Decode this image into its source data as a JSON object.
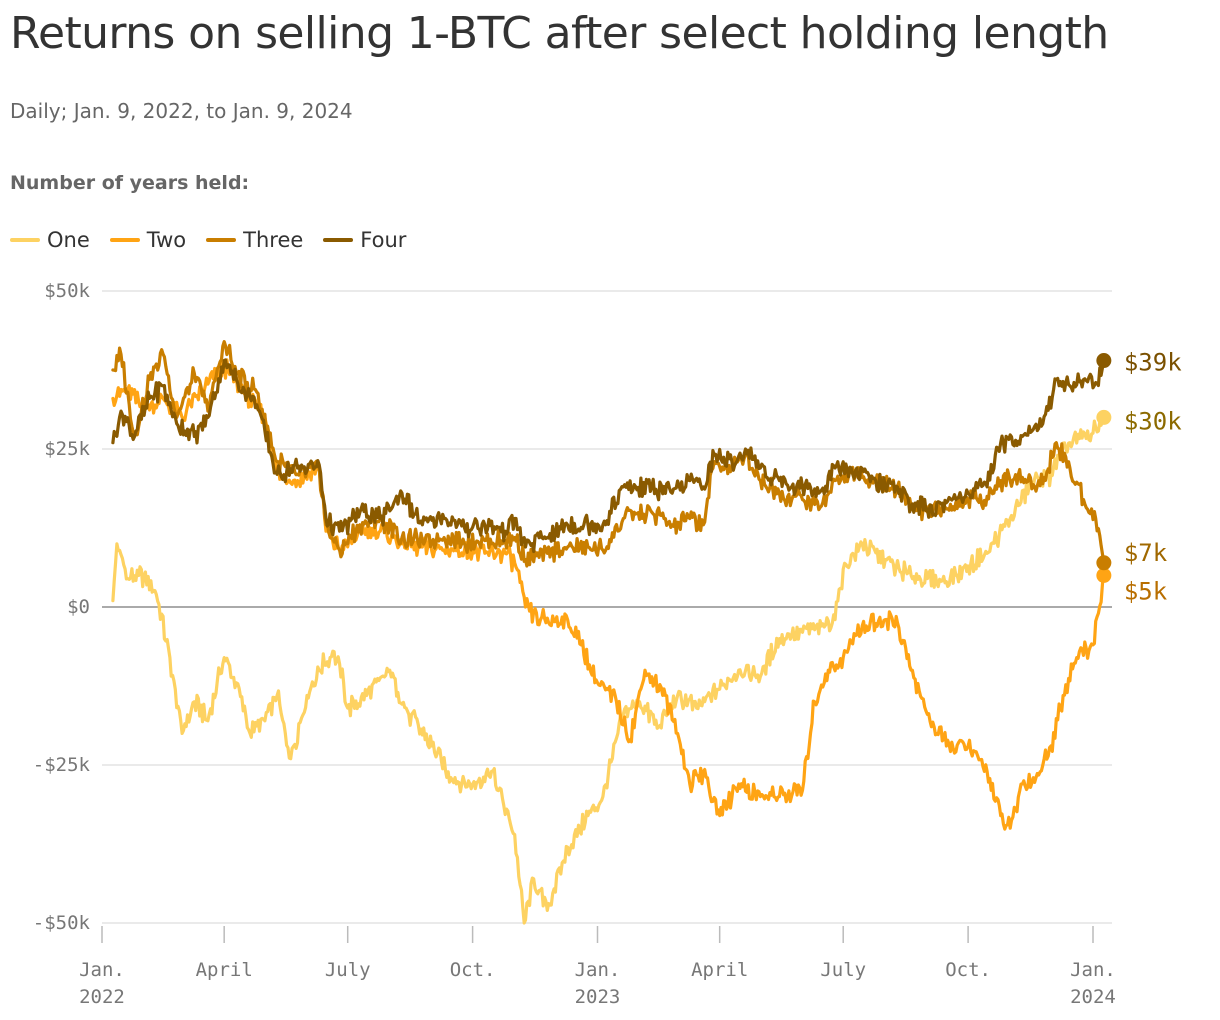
{
  "title": "Returns on selling 1-BTC after select holding length",
  "subtitle": "Daily; Jan. 9, 2022, to Jan. 9, 2024",
  "legend_title": "Number of years held:",
  "chart_data": {
    "type": "line",
    "title": "Returns on selling 1-BTC after select holding length",
    "subtitle": "Daily; Jan. 9, 2022, to Jan. 9, 2024",
    "legend_title": "Number of years held:",
    "legend_placement": "top-left",
    "grid": true,
    "xlim": [
      "2022-01-01",
      "2024-01-15"
    ],
    "ylim": [
      -50000,
      50000
    ],
    "y_ticks": [
      {
        "value": 50000,
        "label": "$50k"
      },
      {
        "value": 25000,
        "label": "$25k"
      },
      {
        "value": 0,
        "label": "$0"
      },
      {
        "value": -25000,
        "label": "-$25k"
      },
      {
        "value": -50000,
        "label": "-$50k"
      }
    ],
    "x_ticks": [
      {
        "date": "2022-01-01",
        "line1": "Jan.",
        "line2": "2022"
      },
      {
        "date": "2022-04-01",
        "line1": "April",
        "line2": ""
      },
      {
        "date": "2022-07-01",
        "line1": "July",
        "line2": ""
      },
      {
        "date": "2022-10-01",
        "line1": "Oct.",
        "line2": ""
      },
      {
        "date": "2023-01-01",
        "line1": "Jan.",
        "line2": "2023"
      },
      {
        "date": "2023-04-01",
        "line1": "April",
        "line2": ""
      },
      {
        "date": "2023-07-01",
        "line1": "July",
        "line2": ""
      },
      {
        "date": "2023-10-01",
        "line1": "Oct.",
        "line2": ""
      },
      {
        "date": "2024-01-01",
        "line1": "Jan.",
        "line2": "2024"
      }
    ],
    "series": [
      {
        "name": "One",
        "color": "#fdd262",
        "end_label": "$30k",
        "label_color": "#8c6a00",
        "points": [
          [
            "2022-01-09",
            1000
          ],
          [
            "2022-01-12",
            10000
          ],
          [
            "2022-01-20",
            4500
          ],
          [
            "2022-02-01",
            5000
          ],
          [
            "2022-02-10",
            2000
          ],
          [
            "2022-02-20",
            -8000
          ],
          [
            "2022-03-01",
            -20000
          ],
          [
            "2022-03-10",
            -15000
          ],
          [
            "2022-03-20",
            -18000
          ],
          [
            "2022-04-01",
            -8000
          ],
          [
            "2022-04-10",
            -12000
          ],
          [
            "2022-04-20",
            -20000
          ],
          [
            "2022-05-01",
            -18000
          ],
          [
            "2022-05-10",
            -14000
          ],
          [
            "2022-05-20",
            -24000
          ],
          [
            "2022-06-01",
            -14000
          ],
          [
            "2022-06-10",
            -10000
          ],
          [
            "2022-06-20",
            -7000
          ],
          [
            "2022-06-25",
            -9000
          ],
          [
            "2022-07-01",
            -16000
          ],
          [
            "2022-07-15",
            -14000
          ],
          [
            "2022-08-01",
            -10000
          ],
          [
            "2022-08-15",
            -17000
          ],
          [
            "2022-09-01",
            -22000
          ],
          [
            "2022-09-15",
            -27000
          ],
          [
            "2022-10-01",
            -28000
          ],
          [
            "2022-10-15",
            -26000
          ],
          [
            "2022-11-01",
            -36000
          ],
          [
            "2022-11-08",
            -50000
          ],
          [
            "2022-11-15",
            -43000
          ],
          [
            "2022-11-25",
            -48000
          ],
          [
            "2022-12-10",
            -38000
          ],
          [
            "2022-12-25",
            -33000
          ],
          [
            "2023-01-05",
            -30000
          ],
          [
            "2023-01-20",
            -17000
          ],
          [
            "2023-02-01",
            -15000
          ],
          [
            "2023-02-15",
            -19000
          ],
          [
            "2023-03-01",
            -14000
          ],
          [
            "2023-03-15",
            -16000
          ],
          [
            "2023-04-01",
            -13000
          ],
          [
            "2023-04-15",
            -10000
          ],
          [
            "2023-05-01",
            -11000
          ],
          [
            "2023-05-15",
            -5000
          ],
          [
            "2023-06-01",
            -4000
          ],
          [
            "2023-06-15",
            -3000
          ],
          [
            "2023-06-25",
            -2000
          ],
          [
            "2023-07-01",
            6000
          ],
          [
            "2023-07-15",
            10000
          ],
          [
            "2023-08-01",
            7500
          ],
          [
            "2023-08-20",
            5000
          ],
          [
            "2023-09-01",
            4500
          ],
          [
            "2023-09-15",
            4000
          ],
          [
            "2023-10-01",
            6500
          ],
          [
            "2023-10-15",
            8500
          ],
          [
            "2023-11-01",
            14000
          ],
          [
            "2023-11-15",
            19000
          ],
          [
            "2023-12-01",
            21000
          ],
          [
            "2023-12-15",
            26000
          ],
          [
            "2024-01-01",
            27500
          ],
          [
            "2024-01-09",
            30000
          ]
        ]
      },
      {
        "name": "Two",
        "color": "#ffa414",
        "end_label": "$5k",
        "label_color": "#b86e00",
        "points": [
          [
            "2022-01-09",
            33000
          ],
          [
            "2022-01-20",
            34500
          ],
          [
            "2022-02-01",
            31000
          ],
          [
            "2022-02-15",
            33000
          ],
          [
            "2022-03-01",
            30000
          ],
          [
            "2022-03-15",
            34000
          ],
          [
            "2022-04-01",
            38000
          ],
          [
            "2022-04-15",
            34000
          ],
          [
            "2022-05-01",
            30000
          ],
          [
            "2022-05-10",
            21000
          ],
          [
            "2022-05-25",
            20000
          ],
          [
            "2022-06-10",
            22000
          ],
          [
            "2022-06-15",
            12000
          ],
          [
            "2022-06-25",
            9000
          ],
          [
            "2022-07-10",
            12000
          ],
          [
            "2022-07-25",
            12000
          ],
          [
            "2022-08-10",
            10000
          ],
          [
            "2022-08-25",
            9500
          ],
          [
            "2022-09-10",
            9000
          ],
          [
            "2022-09-25",
            9000
          ],
          [
            "2022-10-10",
            8500
          ],
          [
            "2022-10-25",
            8500
          ],
          [
            "2022-11-01",
            7000
          ],
          [
            "2022-11-09",
            0
          ],
          [
            "2022-11-20",
            -2000
          ],
          [
            "2022-12-10",
            -2000
          ],
          [
            "2022-12-20",
            -6000
          ],
          [
            "2023-01-01",
            -12000
          ],
          [
            "2023-01-15",
            -15000
          ],
          [
            "2023-01-25",
            -21000
          ],
          [
            "2023-02-05",
            -10000
          ],
          [
            "2023-02-20",
            -14000
          ],
          [
            "2023-03-01",
            -20000
          ],
          [
            "2023-03-10",
            -28000
          ],
          [
            "2023-03-20",
            -26000
          ],
          [
            "2023-04-01",
            -33000
          ],
          [
            "2023-04-15",
            -28000
          ],
          [
            "2023-05-01",
            -30000
          ],
          [
            "2023-05-15",
            -30000
          ],
          [
            "2023-06-01",
            -29000
          ],
          [
            "2023-06-10",
            -15000
          ],
          [
            "2023-06-20",
            -10000
          ],
          [
            "2023-07-01",
            -8000
          ],
          [
            "2023-07-15",
            -3000
          ],
          [
            "2023-08-01",
            -2000
          ],
          [
            "2023-08-10",
            -2500
          ],
          [
            "2023-08-20",
            -10000
          ],
          [
            "2023-09-01",
            -17000
          ],
          [
            "2023-09-15",
            -22000
          ],
          [
            "2023-10-01",
            -22000
          ],
          [
            "2023-10-15",
            -26000
          ],
          [
            "2023-10-25",
            -33000
          ],
          [
            "2023-11-01",
            -35000
          ],
          [
            "2023-11-10",
            -28000
          ],
          [
            "2023-11-20",
            -27000
          ],
          [
            "2023-12-01",
            -22000
          ],
          [
            "2023-12-10",
            -14000
          ],
          [
            "2023-12-20",
            -8000
          ],
          [
            "2024-01-01",
            -6000
          ],
          [
            "2024-01-05",
            -1000
          ],
          [
            "2024-01-09",
            5000
          ]
        ]
      },
      {
        "name": "Three",
        "color": "#c97e00",
        "end_label": "$7k",
        "label_color": "#a06800",
        "points": [
          [
            "2022-01-09",
            37500
          ],
          [
            "2022-01-15",
            40000
          ],
          [
            "2022-01-25",
            27000
          ],
          [
            "2022-02-05",
            36000
          ],
          [
            "2022-02-15",
            40000
          ],
          [
            "2022-02-25",
            30000
          ],
          [
            "2022-03-10",
            37000
          ],
          [
            "2022-03-20",
            31000
          ],
          [
            "2022-04-01",
            42000
          ],
          [
            "2022-04-10",
            37000
          ],
          [
            "2022-04-25",
            34000
          ],
          [
            "2022-05-10",
            23000
          ],
          [
            "2022-05-25",
            21000
          ],
          [
            "2022-06-10",
            22000
          ],
          [
            "2022-06-15",
            13000
          ],
          [
            "2022-06-25",
            9000
          ],
          [
            "2022-07-10",
            13000
          ],
          [
            "2022-07-25",
            14000
          ],
          [
            "2022-08-10",
            11000
          ],
          [
            "2022-08-25",
            10500
          ],
          [
            "2022-09-10",
            11000
          ],
          [
            "2022-09-25",
            10000
          ],
          [
            "2022-10-10",
            10500
          ],
          [
            "2022-10-25",
            10500
          ],
          [
            "2022-11-01",
            11000
          ],
          [
            "2022-11-09",
            7500
          ],
          [
            "2022-11-25",
            8500
          ],
          [
            "2022-12-10",
            9500
          ],
          [
            "2022-12-25",
            9500
          ],
          [
            "2023-01-05",
            9000
          ],
          [
            "2023-01-20",
            14000
          ],
          [
            "2023-02-10",
            15000
          ],
          [
            "2023-02-25",
            13000
          ],
          [
            "2023-03-10",
            14000
          ],
          [
            "2023-03-20",
            13000
          ],
          [
            "2023-03-28",
            23000
          ],
          [
            "2023-04-10",
            22000
          ],
          [
            "2023-04-20",
            24000
          ],
          [
            "2023-05-01",
            20000
          ],
          [
            "2023-05-15",
            18000
          ],
          [
            "2023-06-01",
            17000
          ],
          [
            "2023-06-15",
            16000
          ],
          [
            "2023-06-25",
            20000
          ],
          [
            "2023-07-10",
            21000
          ],
          [
            "2023-07-25",
            20000
          ],
          [
            "2023-08-10",
            19000
          ],
          [
            "2023-08-20",
            16000
          ],
          [
            "2023-09-01",
            15000
          ],
          [
            "2023-09-15",
            15500
          ],
          [
            "2023-10-01",
            17000
          ],
          [
            "2023-10-15",
            17500
          ],
          [
            "2023-10-25",
            20000
          ],
          [
            "2023-11-10",
            20500
          ],
          [
            "2023-11-25",
            19500
          ],
          [
            "2023-12-05",
            26000
          ],
          [
            "2023-12-15",
            22000
          ],
          [
            "2023-12-25",
            17000
          ],
          [
            "2024-01-03",
            14000
          ],
          [
            "2024-01-09",
            7000
          ]
        ]
      },
      {
        "name": "Four",
        "color": "#8a5a00",
        "end_label": "$39k",
        "label_color": "#7a5000",
        "points": [
          [
            "2022-01-09",
            26000
          ],
          [
            "2022-01-15",
            31000
          ],
          [
            "2022-01-25",
            27000
          ],
          [
            "2022-02-05",
            33000
          ],
          [
            "2022-02-15",
            35000
          ],
          [
            "2022-02-25",
            29000
          ],
          [
            "2022-03-10",
            27000
          ],
          [
            "2022-03-20",
            30000
          ],
          [
            "2022-04-01",
            39000
          ],
          [
            "2022-04-10",
            36000
          ],
          [
            "2022-04-25",
            32000
          ],
          [
            "2022-05-10",
            21000
          ],
          [
            "2022-05-25",
            22000
          ],
          [
            "2022-06-10",
            22500
          ],
          [
            "2022-06-15",
            14000
          ],
          [
            "2022-06-25",
            12000
          ],
          [
            "2022-07-10",
            15000
          ],
          [
            "2022-07-25",
            14000
          ],
          [
            "2022-08-10",
            18000
          ],
          [
            "2022-08-25",
            13000
          ],
          [
            "2022-09-10",
            14000
          ],
          [
            "2022-09-25",
            12500
          ],
          [
            "2022-10-10",
            13000
          ],
          [
            "2022-10-25",
            12000
          ],
          [
            "2022-11-01",
            14000
          ],
          [
            "2022-11-09",
            9500
          ],
          [
            "2022-11-25",
            11000
          ],
          [
            "2022-12-10",
            13000
          ],
          [
            "2022-12-25",
            13000
          ],
          [
            "2023-01-05",
            13000
          ],
          [
            "2023-01-20",
            19000
          ],
          [
            "2023-02-10",
            19000
          ],
          [
            "2023-02-25",
            18000
          ],
          [
            "2023-03-10",
            20000
          ],
          [
            "2023-03-20",
            19000
          ],
          [
            "2023-03-28",
            24000
          ],
          [
            "2023-04-10",
            23000
          ],
          [
            "2023-04-20",
            25000
          ],
          [
            "2023-05-01",
            22000
          ],
          [
            "2023-05-15",
            20000
          ],
          [
            "2023-06-01",
            19000
          ],
          [
            "2023-06-15",
            18500
          ],
          [
            "2023-06-25",
            22000
          ],
          [
            "2023-07-10",
            21500
          ],
          [
            "2023-07-25",
            20000
          ],
          [
            "2023-08-10",
            19000
          ],
          [
            "2023-08-20",
            16000
          ],
          [
            "2023-09-01",
            15500
          ],
          [
            "2023-09-15",
            16500
          ],
          [
            "2023-10-01",
            18000
          ],
          [
            "2023-10-15",
            19000
          ],
          [
            "2023-10-25",
            26000
          ],
          [
            "2023-11-10",
            27000
          ],
          [
            "2023-11-25",
            29000
          ],
          [
            "2023-12-05",
            36000
          ],
          [
            "2023-12-15",
            35000
          ],
          [
            "2023-12-25",
            36000
          ],
          [
            "2024-01-03",
            35500
          ],
          [
            "2024-01-09",
            39000
          ]
        ]
      }
    ]
  }
}
